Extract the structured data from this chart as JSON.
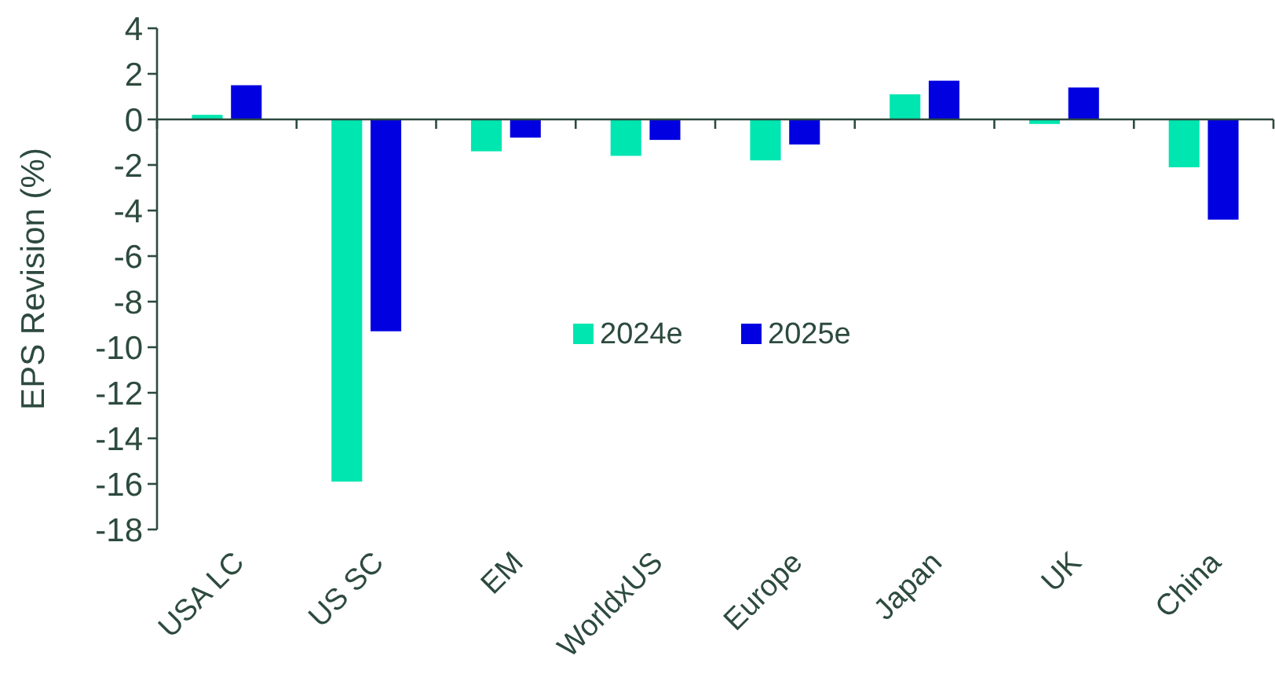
{
  "chart_data": {
    "type": "bar",
    "ylabel": "EPS Revision (%)",
    "categories": [
      "USA LC",
      "US SC",
      "EM",
      "WorldxUS",
      "Europe",
      "Japan",
      "UK",
      "China"
    ],
    "series": [
      {
        "name": "2024e",
        "color": "#00e6b0",
        "values": [
          0.2,
          -15.9,
          -1.4,
          -1.6,
          -1.8,
          1.1,
          -0.2,
          -2.1
        ]
      },
      {
        "name": "2025e",
        "color": "#0000e0",
        "values": [
          1.5,
          -9.3,
          -0.8,
          -0.9,
          -1.1,
          1.7,
          1.4,
          -4.4
        ]
      }
    ],
    "ylim": [
      -18,
      4
    ],
    "yticks": [
      -18,
      -16,
      -14,
      -12,
      -10,
      -8,
      -6,
      -4,
      -2,
      0,
      2,
      4
    ],
    "legend": "center"
  }
}
